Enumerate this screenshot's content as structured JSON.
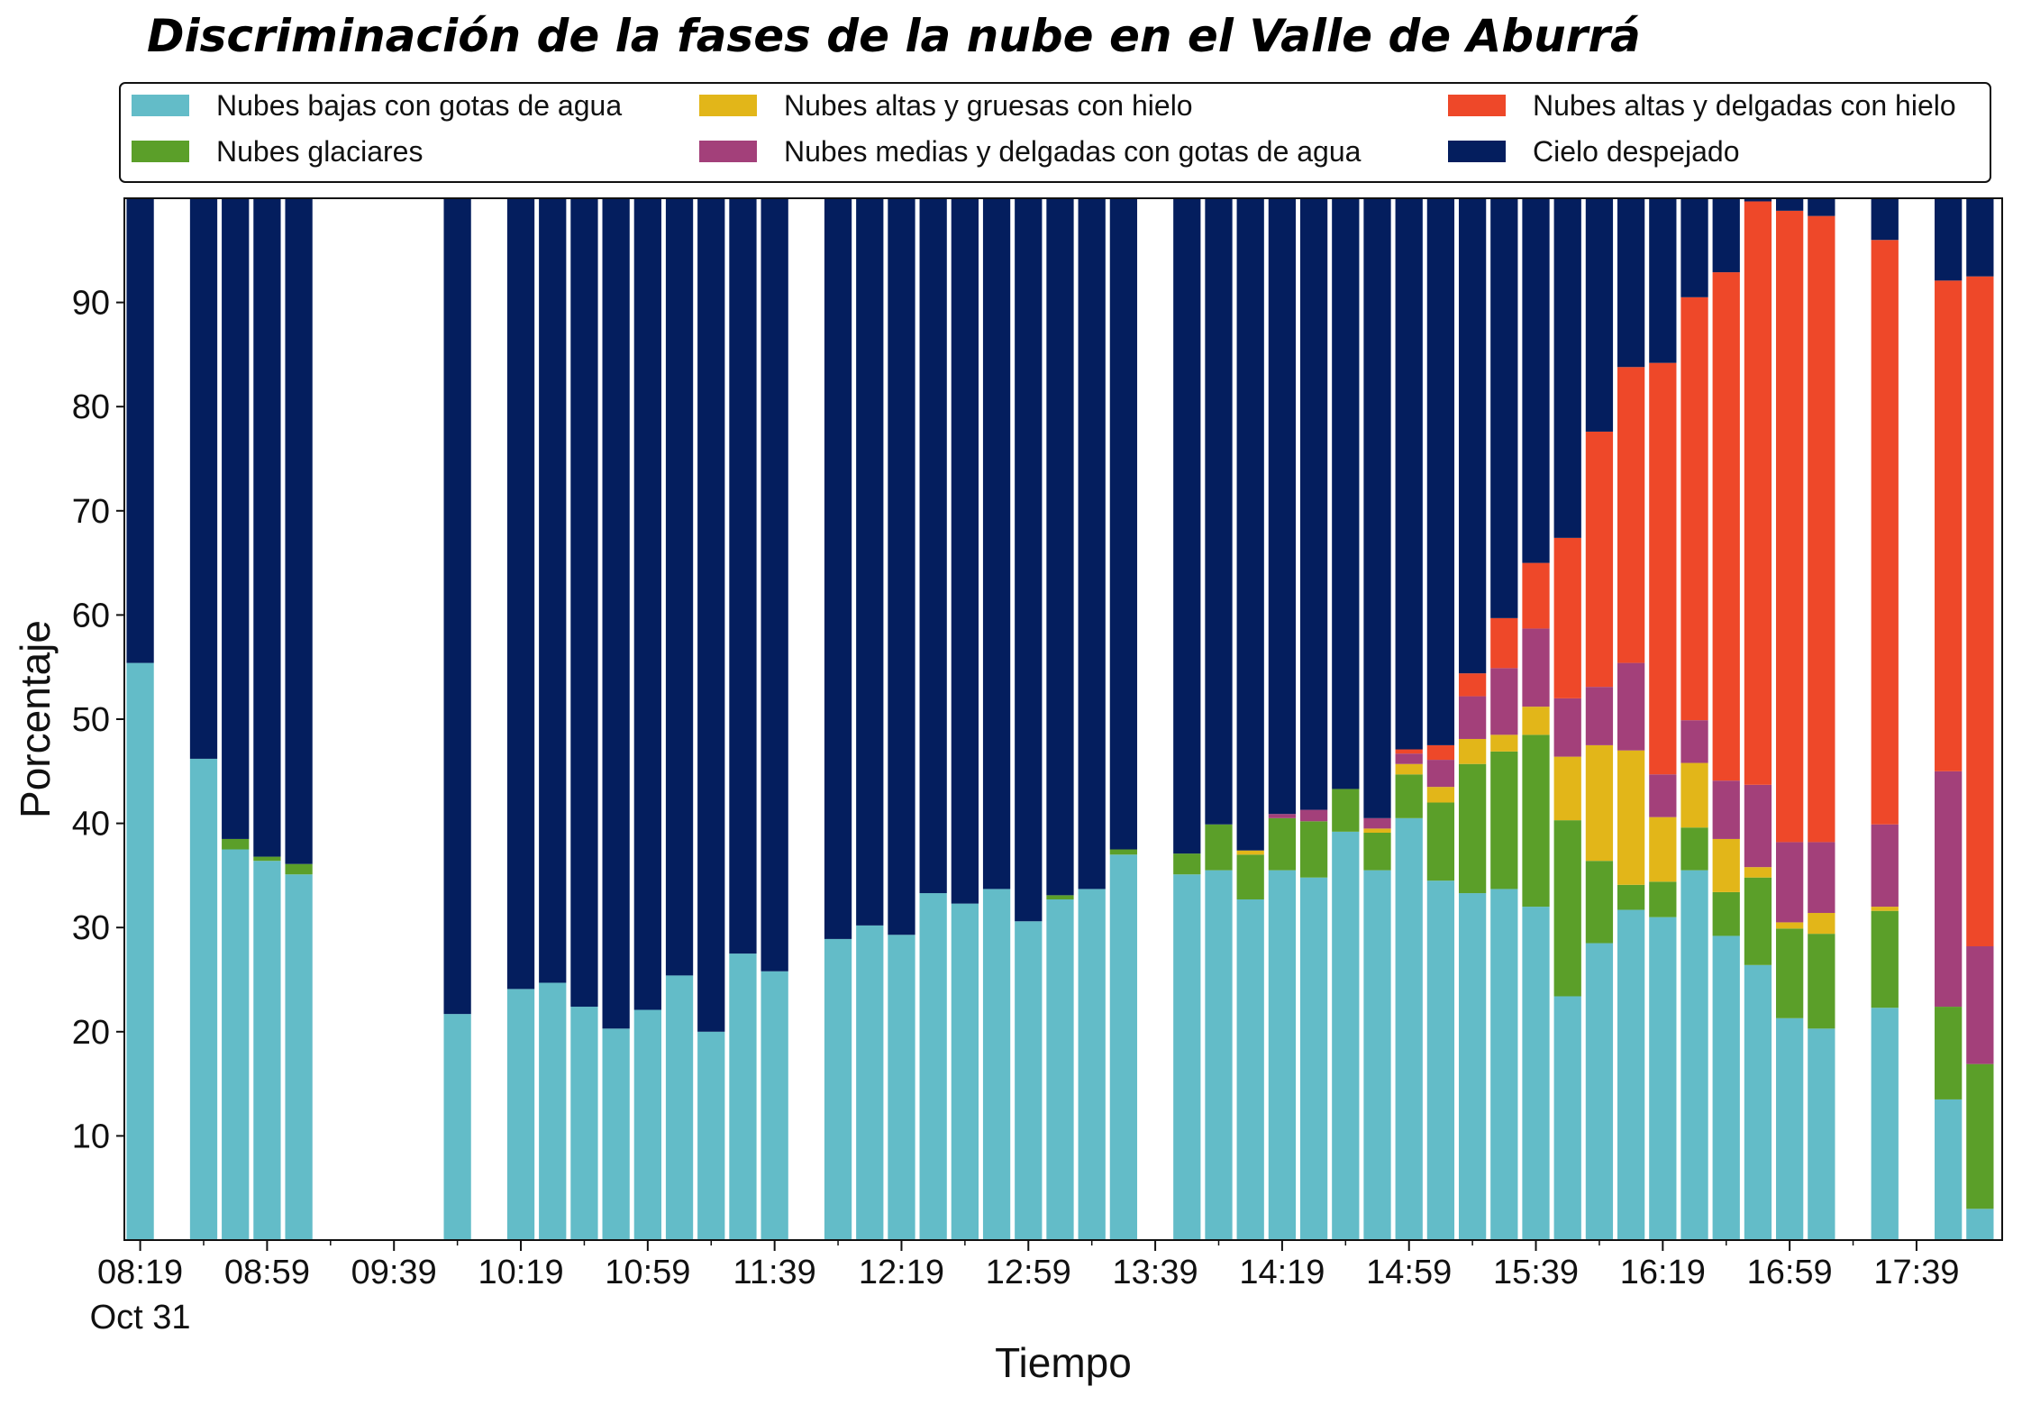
{
  "chart_data": {
    "type": "bar",
    "stacked": true,
    "title": "Discriminación de la fases de la nube en el Valle de Aburrá",
    "xlabel": "Tiempo",
    "ylabel": "Porcentaje",
    "ylim": [
      0,
      100
    ],
    "yticks": [
      10,
      20,
      30,
      40,
      50,
      60,
      70,
      80,
      90
    ],
    "grid": false,
    "legend_position": "top",
    "date_label": "Oct 31",
    "x_time_range": [
      "08:14",
      "18:06"
    ],
    "xticks": [
      "08:19",
      "08:59",
      "09:39",
      "10:19",
      "10:59",
      "11:39",
      "12:19",
      "12:59",
      "13:39",
      "14:19",
      "14:59",
      "15:39",
      "16:19",
      "16:59",
      "17:39"
    ],
    "times": [
      "08:19",
      "08:39",
      "08:49",
      "08:59",
      "09:09",
      "09:59",
      "10:19",
      "10:29",
      "10:39",
      "10:49",
      "10:59",
      "11:09",
      "11:19",
      "11:29",
      "11:39",
      "11:59",
      "12:09",
      "12:19",
      "12:29",
      "12:39",
      "12:49",
      "12:59",
      "13:09",
      "13:19",
      "13:29",
      "13:49",
      "13:59",
      "14:09",
      "14:19",
      "14:29",
      "14:39",
      "14:49",
      "14:59",
      "15:09",
      "15:19",
      "15:29",
      "15:39",
      "15:49",
      "15:59",
      "16:09",
      "16:19",
      "16:29",
      "16:39",
      "16:49",
      "16:59",
      "17:09",
      "17:29",
      "17:49",
      "17:59"
    ],
    "series": [
      {
        "name": "Nubes bajas con gotas de agua",
        "color": "#63bcc8",
        "values": [
          55.4,
          46.2,
          37.5,
          36.4,
          35.1,
          21.7,
          24.1,
          24.7,
          22.4,
          20.3,
          22.1,
          25.4,
          20.0,
          27.5,
          25.8,
          28.9,
          30.2,
          29.3,
          33.3,
          32.3,
          33.7,
          30.6,
          32.7,
          33.7,
          37.0,
          35.1,
          35.5,
          32.7,
          35.5,
          34.8,
          39.2,
          35.5,
          40.5,
          34.5,
          33.3,
          33.7,
          32.0,
          23.4,
          28.5,
          31.7,
          31.0,
          35.5,
          29.2,
          26.4,
          21.3,
          20.3,
          22.3,
          13.5,
          3.0
        ]
      },
      {
        "name": "Nubes glaciares",
        "color": "#5b9f29",
        "values": [
          0,
          0,
          1.0,
          0.4,
          1.0,
          0,
          0,
          0,
          0,
          0,
          0,
          0,
          0,
          0,
          0,
          0,
          0,
          0,
          0,
          0,
          0,
          0,
          0.4,
          0,
          0.5,
          2.0,
          4.4,
          4.3,
          5.0,
          5.4,
          4.1,
          3.6,
          4.2,
          7.5,
          12.4,
          13.2,
          16.5,
          16.9,
          7.9,
          2.4,
          3.4,
          4.1,
          4.2,
          8.4,
          8.6,
          9.1,
          9.3,
          8.9,
          13.9
        ]
      },
      {
        "name": "Nubes altas y gruesas con hielo",
        "color": "#e2b619",
        "values": [
          0,
          0,
          0,
          0,
          0,
          0,
          0,
          0,
          0,
          0,
          0,
          0,
          0,
          0,
          0,
          0,
          0,
          0,
          0,
          0,
          0,
          0,
          0,
          0,
          0,
          0,
          0,
          0.4,
          0,
          0,
          0,
          0.4,
          1.0,
          1.5,
          2.4,
          1.6,
          2.7,
          6.1,
          11.1,
          12.9,
          6.2,
          6.2,
          5.1,
          1.0,
          0.6,
          2.0,
          0.4,
          0,
          0
        ]
      },
      {
        "name": "Nubes medias y delgadas con gotas de agua",
        "color": "#a3407a",
        "values": [
          0,
          0,
          0,
          0,
          0,
          0,
          0,
          0,
          0,
          0,
          0,
          0,
          0,
          0,
          0,
          0,
          0,
          0,
          0,
          0,
          0,
          0,
          0,
          0,
          0,
          0,
          0,
          0,
          0.4,
          1.1,
          0,
          1.0,
          1.0,
          2.6,
          4.1,
          6.4,
          7.5,
          5.6,
          5.6,
          8.4,
          4.1,
          4.1,
          5.6,
          7.9,
          7.7,
          6.8,
          7.9,
          22.6,
          11.3
        ]
      },
      {
        "name": "Nubes altas y delgadas con hielo",
        "color": "#ee4829",
        "values": [
          0,
          0,
          0,
          0,
          0,
          0,
          0,
          0,
          0,
          0,
          0,
          0,
          0,
          0,
          0,
          0,
          0,
          0,
          0,
          0,
          0,
          0,
          0,
          0,
          0,
          0,
          0,
          0,
          0,
          0,
          0,
          0,
          0.4,
          1.4,
          2.2,
          4.8,
          6.3,
          15.4,
          24.5,
          28.4,
          39.5,
          40.6,
          48.8,
          56.0,
          60.6,
          60.1,
          56.1,
          47.1,
          64.3
        ]
      },
      {
        "name": "Cielo despejado",
        "color": "#041e5e",
        "values": [
          44.6,
          53.8,
          61.5,
          63.2,
          63.9,
          78.3,
          75.9,
          75.3,
          77.6,
          79.7,
          77.9,
          74.6,
          80.0,
          72.5,
          74.2,
          71.1,
          69.8,
          70.7,
          66.7,
          67.7,
          66.3,
          69.4,
          66.9,
          66.3,
          62.5,
          62.9,
          60.1,
          62.6,
          59.1,
          58.7,
          56.7,
          59.5,
          52.9,
          52.5,
          45.6,
          40.3,
          35.0,
          32.6,
          22.4,
          16.2,
          15.8,
          9.5,
          7.1,
          0.3,
          1.2,
          1.7,
          4.0,
          7.9,
          7.5
        ]
      }
    ]
  }
}
